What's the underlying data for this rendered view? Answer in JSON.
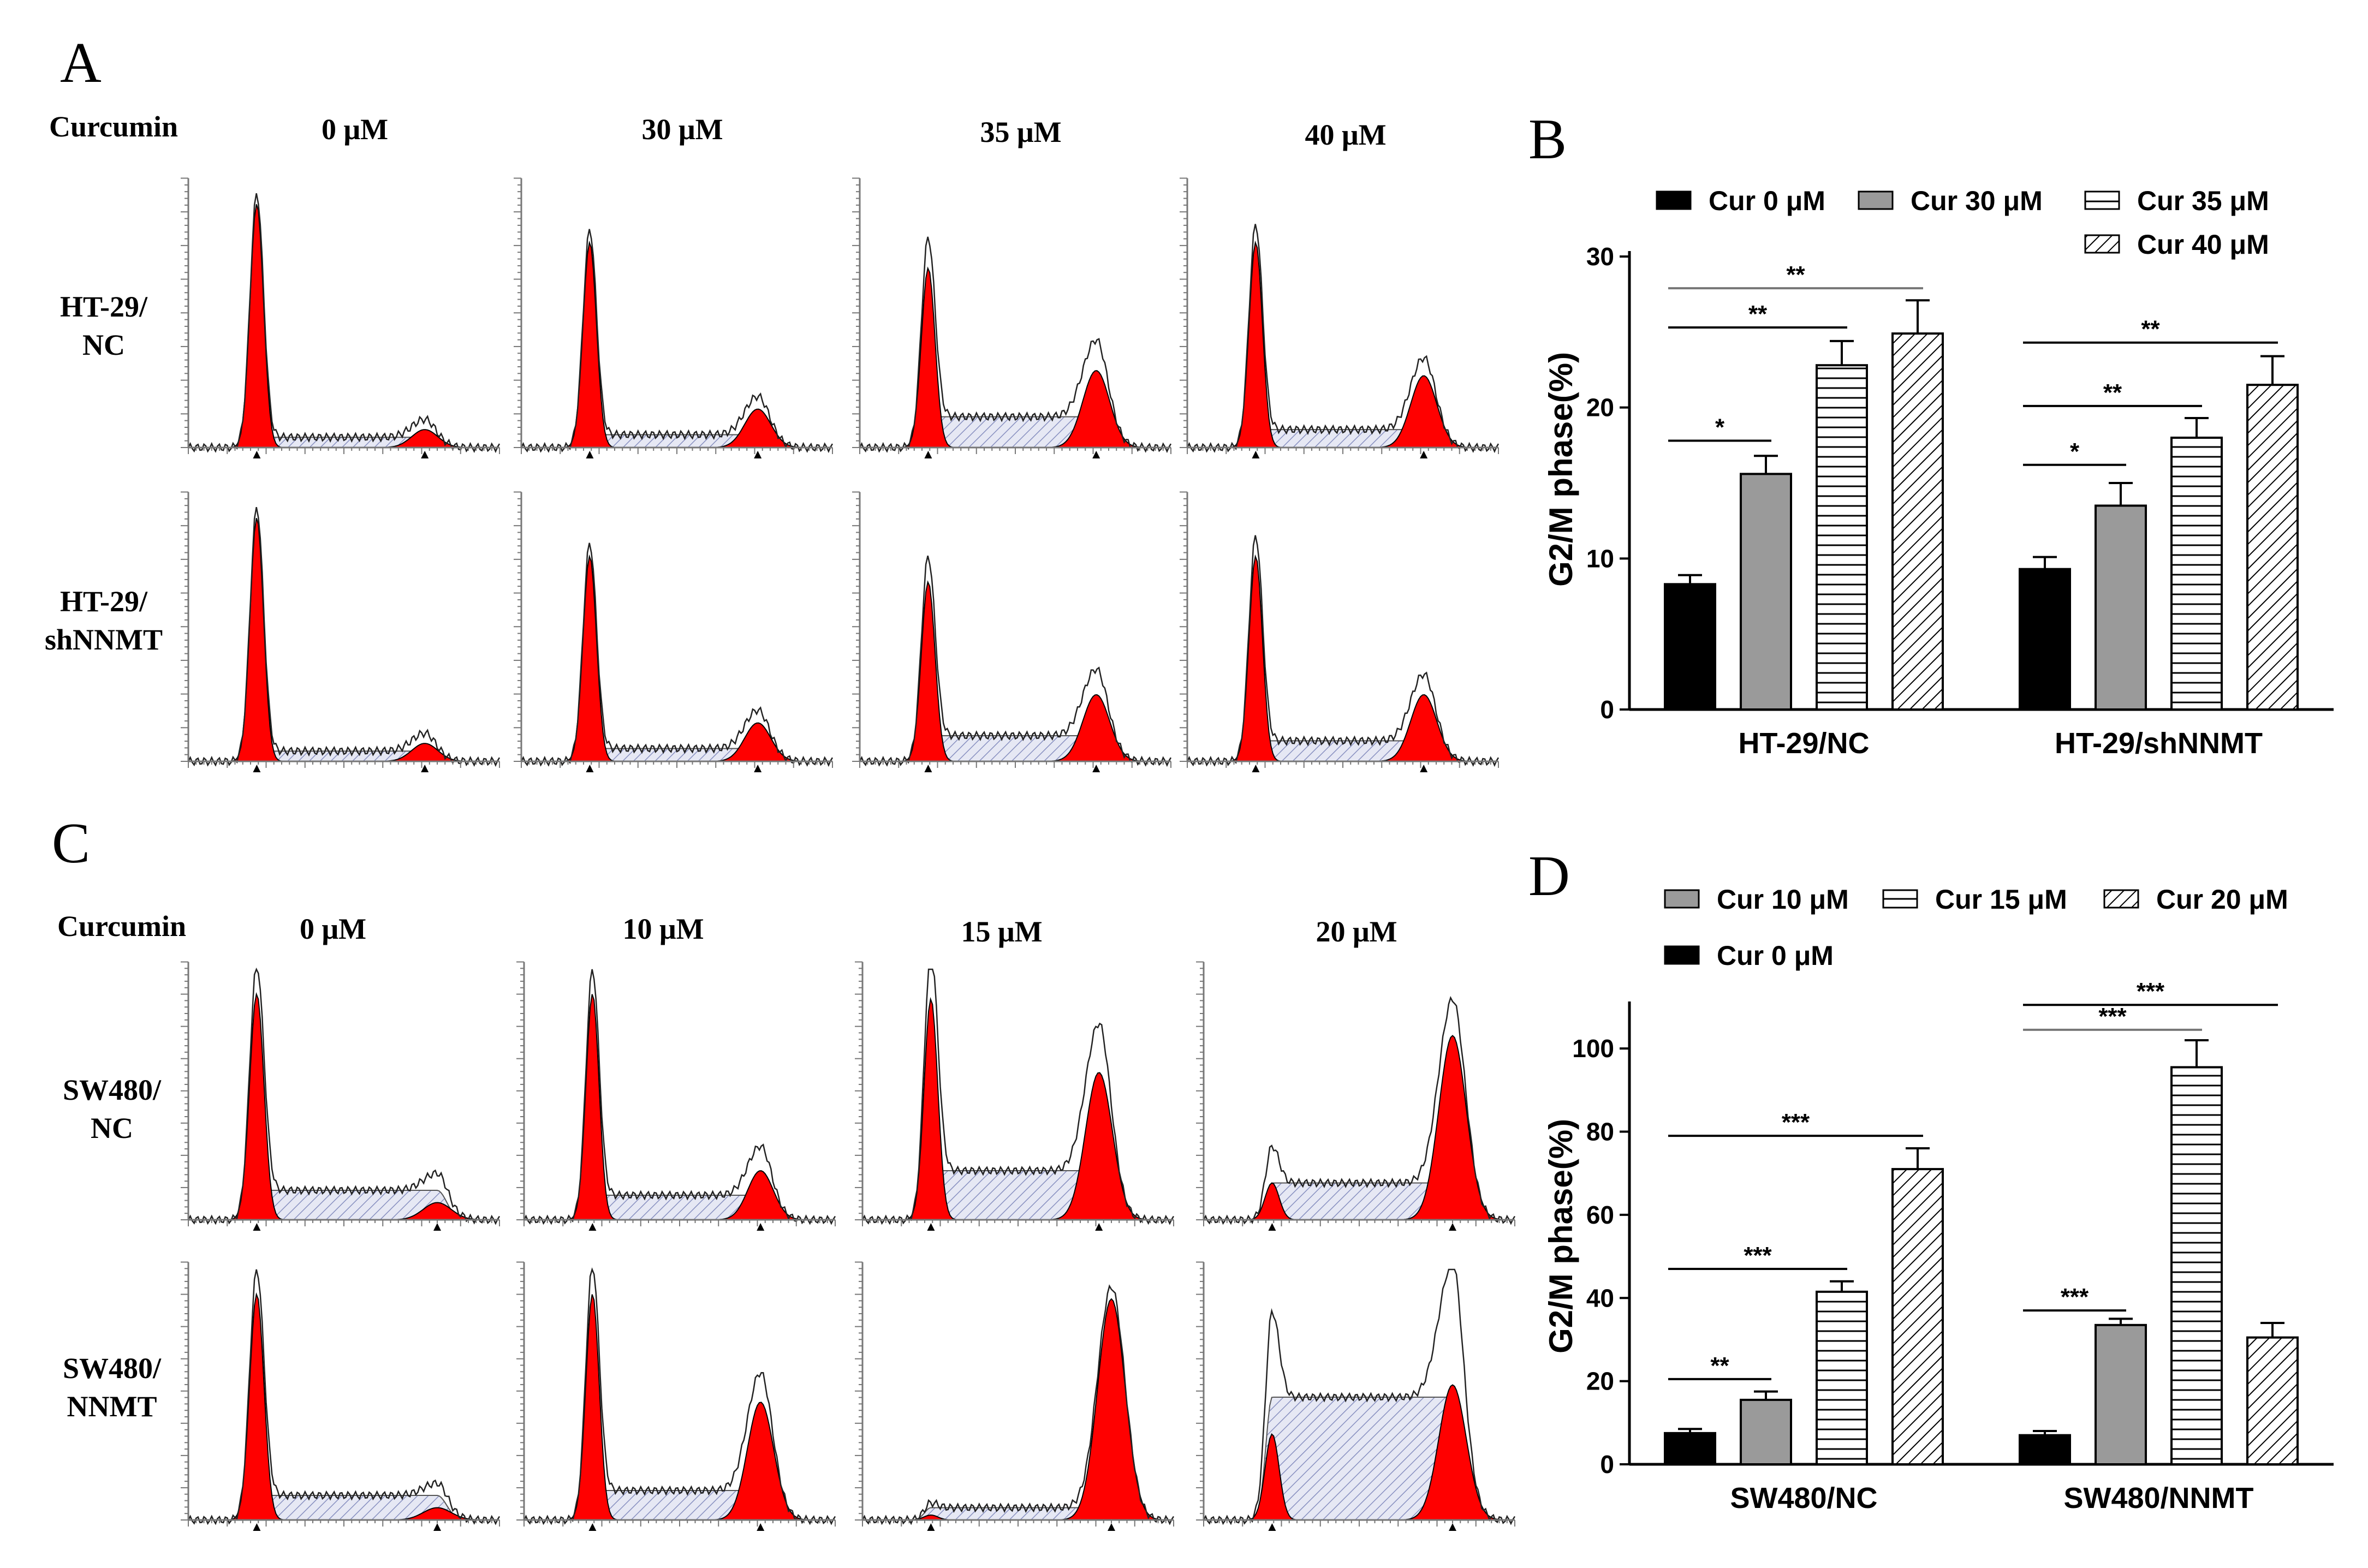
{
  "panels": {
    "A": {
      "letter": "A",
      "row_header": "Curcumin",
      "concentrations": [
        "0 μM",
        "30 μM",
        "35 μM",
        "40 μM"
      ],
      "row_labels": [
        [
          "HT-29/",
          "NC"
        ],
        [
          "HT-29/",
          "shNNMT"
        ]
      ],
      "histograms": [
        [
          {
            "g1": 0.95,
            "g2": 0.07,
            "s": 0.04,
            "w": 0.07
          },
          {
            "g1": 0.8,
            "g2": 0.15,
            "s": 0.05,
            "w": 0.07
          },
          {
            "g1": 0.7,
            "g2": 0.3,
            "s": 0.12,
            "w": 0.08
          },
          {
            "g1": 0.8,
            "g2": 0.28,
            "s": 0.07,
            "w": 0.07
          }
        ],
        [
          {
            "g1": 0.95,
            "g2": 0.07,
            "s": 0.04,
            "w": 0.07
          },
          {
            "g1": 0.8,
            "g2": 0.15,
            "s": 0.05,
            "w": 0.07
          },
          {
            "g1": 0.7,
            "g2": 0.26,
            "s": 0.1,
            "w": 0.08
          },
          {
            "g1": 0.8,
            "g2": 0.26,
            "s": 0.08,
            "w": 0.07
          }
        ]
      ]
    },
    "C": {
      "letter": "C",
      "row_header": "Curcumin",
      "concentrations": [
        "0 μM",
        "10 μM",
        "15 μM",
        "20 μM"
      ],
      "row_labels": [
        [
          "SW480/",
          "NC"
        ],
        [
          "SW480/",
          "NNMT"
        ]
      ],
      "histograms": [
        [
          {
            "g1": 0.92,
            "g2": 0.07,
            "s": 0.12,
            "w": 0.1
          },
          {
            "g1": 0.92,
            "g2": 0.2,
            "s": 0.1,
            "w": 0.06
          },
          {
            "g1": 0.9,
            "g2": 0.6,
            "s": 0.2,
            "w": 0.08
          },
          {
            "g1": 0.15,
            "g2": 0.75,
            "s": 0.15,
            "w": 0.09
          }
        ],
        [
          {
            "g1": 0.92,
            "g2": 0.05,
            "s": 0.1,
            "w": 0.1
          },
          {
            "g1": 0.92,
            "g2": 0.48,
            "s": 0.12,
            "w": 0.07
          },
          {
            "g1": 0.02,
            "g2": 0.9,
            "s": 0.05,
            "w": 0.09
          },
          {
            "g1": 0.35,
            "g2": 0.55,
            "s": 0.5,
            "w": 0.09
          }
        ]
      ]
    }
  },
  "chart_data": [
    {
      "panel": "B",
      "type": "bar",
      "title": "",
      "ylabel": "G2/M phase(%)",
      "xlabel": "",
      "ylim": [
        0,
        30
      ],
      "yticks": [
        0,
        10,
        20,
        30
      ],
      "categories": [
        "HT-29/NC",
        "HT-29/shNNMT"
      ],
      "legend_placement": "top",
      "series": [
        {
          "name": "Cur 0 μM",
          "fill": "solid-black",
          "values": [
            8.3,
            9.3
          ],
          "errors": [
            0.6,
            0.8
          ]
        },
        {
          "name": "Cur 30 μM",
          "fill": "solid-gray",
          "values": [
            15.6,
            13.5
          ],
          "errors": [
            1.2,
            1.5
          ]
        },
        {
          "name": "Cur 35 μM",
          "fill": "horizontal-lines",
          "values": [
            22.8,
            18.0
          ],
          "errors": [
            1.6,
            1.3
          ]
        },
        {
          "name": "Cur 40 μM",
          "fill": "diagonal-lines",
          "values": [
            24.9,
            21.5
          ],
          "errors": [
            2.2,
            1.9
          ]
        }
      ],
      "significance": [
        {
          "category": 0,
          "from_series": 0,
          "to_series": 1,
          "label": "*",
          "y": 17.8,
          "color": "#000000"
        },
        {
          "category": 0,
          "from_series": 0,
          "to_series": 2,
          "label": "**",
          "y": 25.3,
          "color": "#000000"
        },
        {
          "category": 0,
          "from_series": 0,
          "to_series": 3,
          "label": "**",
          "y": 27.9,
          "color": "#777777"
        },
        {
          "category": 1,
          "from_series": 0,
          "to_series": 1,
          "label": "*",
          "y": 16.2,
          "color": "#000000"
        },
        {
          "category": 1,
          "from_series": 0,
          "to_series": 2,
          "label": "**",
          "y": 20.1,
          "color": "#000000"
        },
        {
          "category": 1,
          "from_series": 0,
          "to_series": 3,
          "label": "**",
          "y": 24.3,
          "color": "#000000"
        }
      ]
    },
    {
      "panel": "D",
      "type": "bar",
      "title": "",
      "ylabel": "G2/M phase(%)",
      "xlabel": "",
      "ylim": [
        0,
        110
      ],
      "yticks": [
        0,
        20,
        40,
        60,
        80,
        100
      ],
      "categories": [
        "SW480/NC",
        "SW480/NNMT"
      ],
      "legend_placement": "top",
      "series": [
        {
          "name": "Cur 0 μM",
          "fill": "solid-black",
          "values": [
            7.5,
            7.0
          ],
          "errors": [
            1.0,
            1.0
          ]
        },
        {
          "name": "Cur 10 μM",
          "fill": "solid-gray",
          "values": [
            15.5,
            33.5
          ],
          "errors": [
            2.0,
            1.5
          ]
        },
        {
          "name": "Cur 15 μM",
          "fill": "horizontal-lines",
          "values": [
            41.5,
            95.5
          ],
          "errors": [
            2.5,
            6.5
          ]
        },
        {
          "name": "Cur 20 μM",
          "fill": "diagonal-lines",
          "values": [
            71.0,
            30.5
          ],
          "errors": [
            5.0,
            3.5
          ]
        }
      ],
      "legend_order": [
        1,
        2,
        3,
        0
      ],
      "significance": [
        {
          "category": 0,
          "from_series": 0,
          "to_series": 1,
          "label": "**",
          "y": 20.5,
          "color": "#000000"
        },
        {
          "category": 0,
          "from_series": 0,
          "to_series": 2,
          "label": "***",
          "y": 47.0,
          "color": "#000000"
        },
        {
          "category": 0,
          "from_series": 0,
          "to_series": 3,
          "label": "***",
          "y": 79.0,
          "color": "#000000"
        },
        {
          "category": 1,
          "from_series": 0,
          "to_series": 1,
          "label": "***",
          "y": 37.0,
          "color": "#000000"
        },
        {
          "category": 1,
          "from_series": 0,
          "to_series": 2,
          "label": "***",
          "y": 104.5,
          "color": "#777777"
        },
        {
          "category": 1,
          "from_series": 0,
          "to_series": 3,
          "label": "***",
          "y": 110.5,
          "color": "#000000"
        }
      ]
    }
  ]
}
